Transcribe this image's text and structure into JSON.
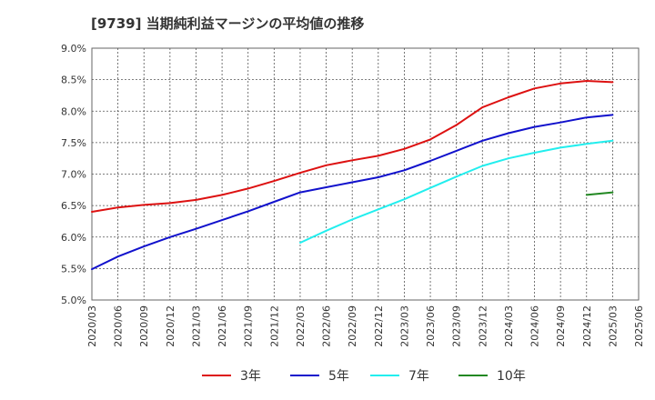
{
  "chart_data": {
    "type": "line",
    "title": "[9739]  当期純利益マージンの平均値の推移",
    "xlabel": "",
    "ylabel": "",
    "ylim": [
      5.0,
      9.0
    ],
    "yticks": [
      "9.0%",
      "8.5%",
      "8.0%",
      "7.5%",
      "7.0%",
      "6.5%",
      "6.0%",
      "5.5%",
      "5.0%"
    ],
    "x": [
      "2020/03",
      "2020/06",
      "2020/09",
      "2020/12",
      "2021/03",
      "2021/06",
      "2021/09",
      "2021/12",
      "2022/03",
      "2022/06",
      "2022/09",
      "2022/12",
      "2023/03",
      "2023/06",
      "2023/09",
      "2023/12",
      "2024/03",
      "2024/06",
      "2024/09",
      "2024/12",
      "2025/03",
      "2025/06"
    ],
    "grid": true,
    "legend_position": "bottom",
    "series": [
      {
        "name": "3年",
        "color": "#dd1111",
        "values": [
          6.4,
          6.47,
          6.51,
          6.54,
          6.59,
          6.67,
          6.77,
          6.89,
          7.02,
          7.14,
          7.22,
          7.29,
          7.4,
          7.55,
          7.78,
          8.06,
          8.22,
          8.36,
          8.44,
          8.48,
          8.46,
          null
        ]
      },
      {
        "name": "5年",
        "color": "#1111cc",
        "values": [
          5.49,
          5.69,
          5.85,
          6.0,
          6.13,
          6.27,
          6.41,
          6.56,
          6.71,
          6.79,
          6.87,
          6.95,
          7.06,
          7.21,
          7.37,
          7.53,
          7.65,
          7.75,
          7.82,
          7.9,
          7.94,
          null
        ]
      },
      {
        "name": "7年",
        "color": "#22eeee",
        "values": [
          null,
          null,
          null,
          null,
          null,
          null,
          null,
          null,
          5.91,
          6.1,
          6.28,
          6.44,
          6.6,
          6.78,
          6.96,
          7.13,
          7.25,
          7.34,
          7.42,
          7.48,
          7.53,
          null
        ]
      },
      {
        "name": "10年",
        "color": "#228822",
        "values": [
          null,
          null,
          null,
          null,
          null,
          null,
          null,
          null,
          null,
          null,
          null,
          null,
          null,
          null,
          null,
          null,
          null,
          null,
          null,
          6.67,
          6.71,
          null
        ]
      }
    ]
  }
}
